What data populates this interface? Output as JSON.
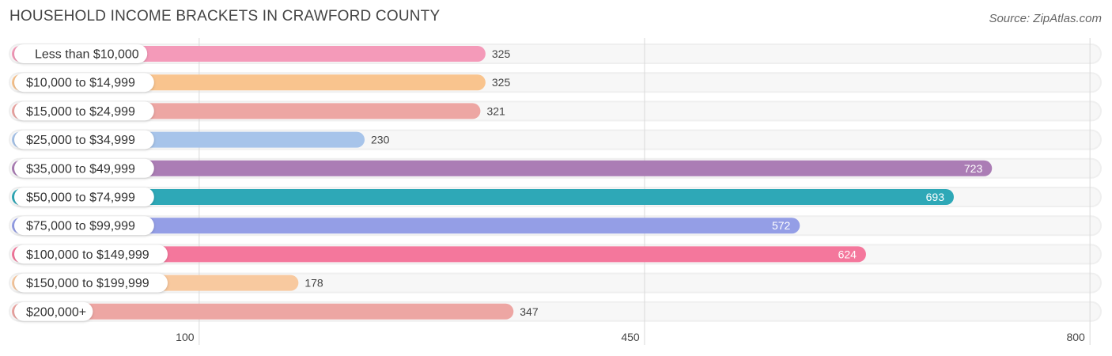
{
  "header": {
    "title": "HOUSEHOLD INCOME BRACKETS IN CRAWFORD COUNTY",
    "source": "Source: ZipAtlas.com"
  },
  "chart_data": {
    "type": "bar",
    "orientation": "horizontal",
    "title": "HOUSEHOLD INCOME BRACKETS IN CRAWFORD COUNTY",
    "xlabel": "",
    "ylabel": "",
    "categories": [
      "Less than $10,000",
      "$10,000 to $14,999",
      "$15,000 to $24,999",
      "$25,000 to $34,999",
      "$35,000 to $49,999",
      "$50,000 to $74,999",
      "$75,000 to $99,999",
      "$100,000 to $149,999",
      "$150,000 to $199,999",
      "$200,000+"
    ],
    "values": [
      325,
      325,
      321,
      230,
      723,
      693,
      572,
      624,
      178,
      347
    ],
    "value_labels": [
      "325",
      "325",
      "321",
      "230",
      "723",
      "693",
      "572",
      "624",
      "178",
      "347"
    ],
    "colors": [
      "#f49ab9",
      "#f9c48e",
      "#eda6a3",
      "#a7c4ea",
      "#ab7db5",
      "#2ea8b7",
      "#949ee6",
      "#f4779c",
      "#f8c99f",
      "#eda6a3"
    ],
    "xticks": [
      100,
      450,
      800
    ],
    "xtick_labels": [
      "100",
      "450",
      "800"
    ],
    "grid": true,
    "legend": "none"
  }
}
